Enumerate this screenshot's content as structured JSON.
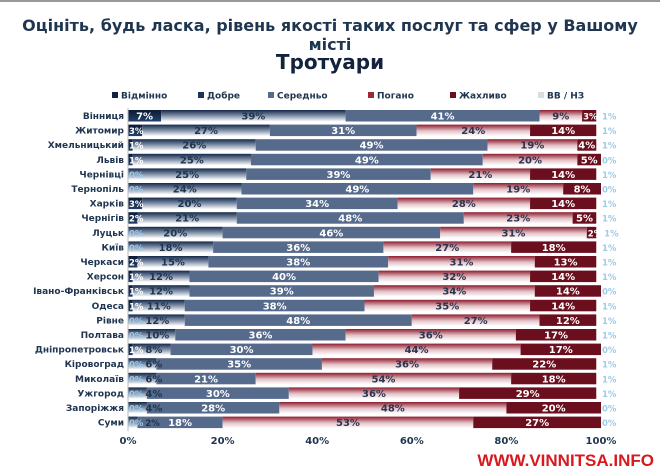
{
  "chart_data": {
    "type": "bar",
    "orientation": "horizontal",
    "stacked": true,
    "title": "Оцініть, будь ласка, рівень якості таких послуг та сфер у Вашому місті",
    "subtitle": "Тротуари",
    "legend_position": "top",
    "xlim": [
      0,
      100
    ],
    "x_ticks": [
      "0%",
      "20%",
      "40%",
      "60%",
      "80%",
      "100%"
    ],
    "categories": [
      "Вінниця",
      "Житомир",
      "Хмельницький",
      "Львів",
      "Чернівці",
      "Тернопіль",
      "Харків",
      "Чернігів",
      "Луцьк",
      "Київ",
      "Черкаси",
      "Херсон",
      "Івано-Франківськ",
      "Одеса",
      "Рівне",
      "Полтава",
      "Дніпропетровськ",
      "Кіровоград",
      "Миколаїв",
      "Ужгород",
      "Запоріжжя",
      "Суми"
    ],
    "series": [
      {
        "name": "Відмінно",
        "color": "#0f2443",
        "values": [
          7,
          3,
          1,
          1,
          0,
          0,
          3,
          2,
          0,
          0,
          2,
          1,
          1,
          1,
          0,
          0,
          1,
          0,
          0,
          0,
          0,
          0
        ]
      },
      {
        "name": "Добре",
        "color": "#1c3458",
        "values": [
          39,
          27,
          26,
          25,
          25,
          24,
          20,
          21,
          20,
          18,
          15,
          12,
          12,
          11,
          12,
          10,
          8,
          6,
          6,
          4,
          4,
          2
        ]
      },
      {
        "name": "Середньо",
        "color": "#566a8c",
        "values": [
          41,
          31,
          49,
          49,
          39,
          49,
          34,
          48,
          46,
          36,
          38,
          40,
          39,
          38,
          48,
          36,
          30,
          35,
          21,
          30,
          28,
          18
        ]
      },
      {
        "name": "Погано",
        "color": "#9a2a3a",
        "values": [
          9,
          24,
          19,
          20,
          21,
          19,
          28,
          23,
          31,
          27,
          31,
          32,
          34,
          35,
          27,
          36,
          44,
          36,
          54,
          36,
          48,
          53
        ]
      },
      {
        "name": "Жахливо",
        "color": "#6b0f1f",
        "values": [
          3,
          14,
          4,
          5,
          14,
          8,
          14,
          5,
          2,
          18,
          13,
          14,
          14,
          14,
          12,
          17,
          17,
          22,
          18,
          29,
          20,
          27
        ]
      },
      {
        "name": "ВВ / НЗ",
        "color": "#d9dde3",
        "values": [
          1,
          1,
          1,
          0,
          1,
          0,
          1,
          1,
          1,
          1,
          1,
          1,
          0,
          1,
          1,
          1,
          0,
          1,
          1,
          1,
          0,
          0
        ]
      }
    ]
  },
  "watermark": "WWW.VINNITSA.INFO"
}
